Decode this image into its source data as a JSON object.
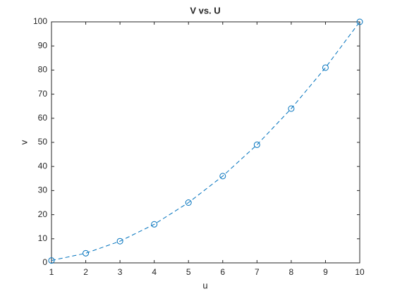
{
  "chart_data": {
    "type": "line",
    "title": "V vs. U",
    "xlabel": "u",
    "ylabel": "v",
    "x": [
      1,
      2,
      3,
      4,
      5,
      6,
      7,
      8,
      9,
      10
    ],
    "values": [
      1,
      4,
      9,
      16,
      25,
      36,
      49,
      64,
      81,
      100
    ],
    "color": "#0072bd",
    "marker": "circle",
    "line_style": "dashed",
    "xlim": [
      1,
      10
    ],
    "xticks": [
      1,
      2,
      3,
      4,
      5,
      6,
      7,
      8,
      9,
      10
    ],
    "ylim": [
      0,
      100
    ],
    "yticks": [
      0,
      10,
      20,
      30,
      40,
      50,
      60,
      70,
      80,
      90,
      100
    ],
    "grid": false
  }
}
